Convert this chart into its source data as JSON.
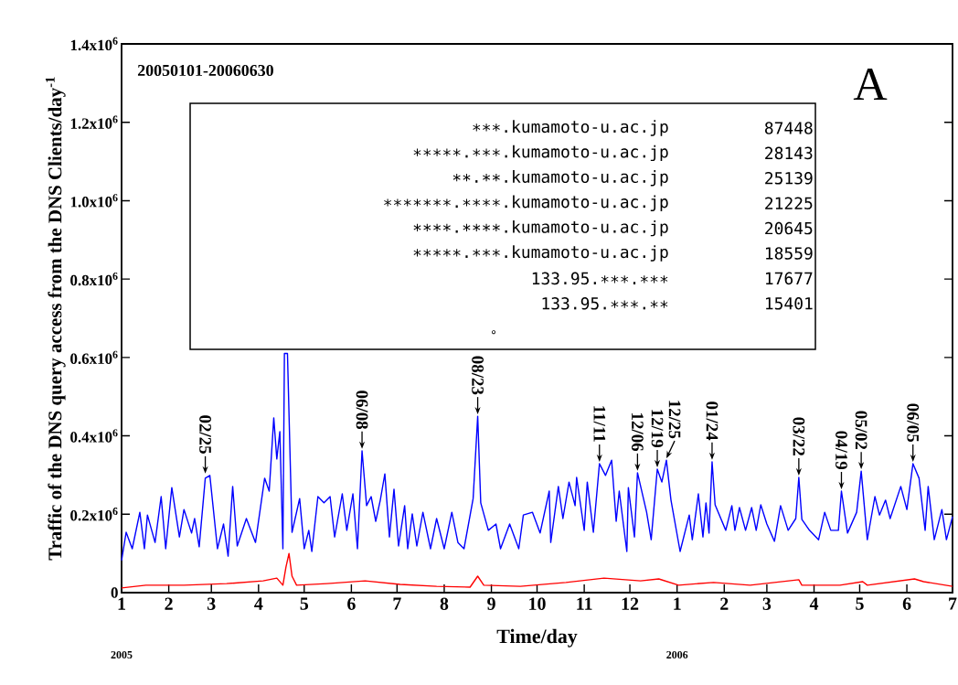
{
  "chart_data": {
    "type": "line",
    "xlabel": "Time/day",
    "ylabel": "Traffic of the DNS query access from the DNS Clients/day$^{-1}$",
    "xlim": [
      "2005-01-01",
      "2006-07-01"
    ],
    "ylim": [
      0,
      1400000
    ],
    "xticks": [
      {
        "value": "2005-01-01",
        "label": "1"
      },
      {
        "value": "2005-02-01",
        "label": "2"
      },
      {
        "value": "2005-03-01",
        "label": "3"
      },
      {
        "value": "2005-04-01",
        "label": "4"
      },
      {
        "value": "2005-05-01",
        "label": "5"
      },
      {
        "value": "2005-06-01",
        "label": "6"
      },
      {
        "value": "2005-07-01",
        "label": "7"
      },
      {
        "value": "2005-08-01",
        "label": "8"
      },
      {
        "value": "2005-09-01",
        "label": "9"
      },
      {
        "value": "2005-10-01",
        "label": "10"
      },
      {
        "value": "2005-11-01",
        "label": "11"
      },
      {
        "value": "2005-12-01",
        "label": "12"
      },
      {
        "value": "2006-01-01",
        "label": "1"
      },
      {
        "value": "2006-02-01",
        "label": "2"
      },
      {
        "value": "2006-03-01",
        "label": "3"
      },
      {
        "value": "2006-04-01",
        "label": "4"
      },
      {
        "value": "2006-05-01",
        "label": "5"
      },
      {
        "value": "2006-06-01",
        "label": "6"
      },
      {
        "value": "2006-07-01",
        "label": "7"
      }
    ],
    "yticks": [
      0,
      {
        "value": 200000,
        "label": "0.2x10$^{6}$"
      },
      {
        "value": 400000,
        "label": "0.4x10$^{6}$"
      },
      {
        "value": 600000,
        "label": "0.6x10$^{6}$"
      },
      {
        "value": 800000,
        "label": "0.8x10$^{6}$"
      },
      {
        "value": 1000000,
        "label": "1.0x10$^{6}$"
      },
      {
        "value": 1200000,
        "label": "1.2x10$^{6}$"
      },
      {
        "value": 1400000,
        "label": "1.4x10$^{6}$"
      }
    ],
    "grid": false,
    "marker": "none",
    "line_style": "solid",
    "series": [
      {
        "color": "#0000ff",
        "x": [
          "2005-01-01",
          "2005-01-04",
          "2005-01-08",
          "2005-01-13",
          "2005-01-16",
          "2005-01-18",
          "2005-01-23",
          "2005-01-27",
          "2005-01-30",
          "2005-02-03",
          "2005-02-08",
          "2005-02-11",
          "2005-02-16",
          "2005-02-18",
          "2005-02-21",
          "2005-02-25",
          "2005-02-28",
          "2005-03-05",
          "2005-03-09",
          "2005-03-12",
          "2005-03-15",
          "2005-03-18",
          "2005-03-24",
          "2005-03-30",
          "2005-04-05",
          "2005-04-08",
          "2005-04-11",
          "2005-04-13",
          "2005-04-15",
          "2005-04-17",
          "2005-04-18",
          "2005-04-20",
          "2005-04-22",
          "2005-04-23",
          "2005-04-28",
          "2005-05-01",
          "2005-05-04",
          "2005-05-06",
          "2005-05-10",
          "2005-05-14",
          "2005-05-18",
          "2005-05-21",
          "2005-05-26",
          "2005-05-29",
          "2005-06-02",
          "2005-06-05",
          "2005-06-08",
          "2005-06-11",
          "2005-06-14",
          "2005-06-17",
          "2005-06-20",
          "2005-06-23",
          "2005-06-26",
          "2005-06-29",
          "2005-07-02",
          "2005-07-06",
          "2005-07-08",
          "2005-07-11",
          "2005-07-14",
          "2005-07-18",
          "2005-07-23",
          "2005-07-27",
          "2005-08-01",
          "2005-08-06",
          "2005-08-10",
          "2005-08-14",
          "2005-08-20",
          "2005-08-23",
          "2005-08-25",
          "2005-08-30",
          "2005-09-04",
          "2005-09-07",
          "2005-09-13",
          "2005-09-19",
          "2005-09-22",
          "2005-09-28",
          "2005-10-03",
          "2005-10-09",
          "2005-10-10",
          "2005-10-15",
          "2005-10-18",
          "2005-10-22",
          "2005-10-26",
          "2005-10-27",
          "2005-11-01",
          "2005-11-03",
          "2005-11-07",
          "2005-11-11",
          "2005-11-15",
          "2005-11-19",
          "2005-11-22",
          "2005-11-24",
          "2005-11-29",
          "2005-11-30",
          "2005-12-04",
          "2005-12-06",
          "2005-12-12",
          "2005-12-15",
          "2005-12-19",
          "2005-12-22",
          "2005-12-25",
          "2005-12-28",
          "2006-01-03",
          "2006-01-09",
          "2006-01-11",
          "2006-01-15",
          "2006-01-18",
          "2006-01-20",
          "2006-01-22",
          "2006-01-24",
          "2006-01-26",
          "2006-02-02",
          "2006-02-06",
          "2006-02-08",
          "2006-02-11",
          "2006-02-15",
          "2006-02-19",
          "2006-02-22",
          "2006-02-25",
          "2006-03-01",
          "2006-03-06",
          "2006-03-10",
          "2006-03-15",
          "2006-03-20",
          "2006-03-22",
          "2006-03-24",
          "2006-03-29",
          "2006-04-04",
          "2006-04-08",
          "2006-04-12",
          "2006-04-17",
          "2006-04-19",
          "2006-04-23",
          "2006-04-29",
          "2006-05-02",
          "2006-05-06",
          "2006-05-11",
          "2006-05-14",
          "2006-05-18",
          "2006-05-21",
          "2006-05-28",
          "2006-06-01",
          "2006-06-05",
          "2006-06-09",
          "2006-06-13",
          "2006-06-15",
          "2006-06-19",
          "2006-06-24",
          "2006-06-27",
          "2006-07-01"
        ],
        "values": [
          82000,
          154000,
          112000,
          205000,
          112000,
          198000,
          128000,
          245000,
          112000,
          268000,
          142000,
          212000,
          152000,
          189000,
          117000,
          292000,
          299000,
          112000,
          175000,
          93000,
          271000,
          119000,
          189000,
          128000,
          292000,
          259000,
          446000,
          341000,
          411000,
          112000,
          610000,
          610000,
          306000,
          154000,
          240000,
          112000,
          159000,
          105000,
          245000,
          229000,
          245000,
          142000,
          252000,
          159000,
          252000,
          112000,
          362000,
          222000,
          245000,
          182000,
          236000,
          303000,
          142000,
          264000,
          119000,
          222000,
          112000,
          201000,
          119000,
          205000,
          112000,
          189000,
          112000,
          205000,
          128000,
          112000,
          240000,
          450000,
          229000,
          159000,
          175000,
          112000,
          175000,
          112000,
          198000,
          205000,
          152000,
          259000,
          128000,
          271000,
          189000,
          282000,
          222000,
          294000,
          159000,
          282000,
          154000,
          329000,
          299000,
          338000,
          182000,
          259000,
          105000,
          268000,
          142000,
          306000,
          205000,
          135000,
          315000,
          282000,
          338000,
          236000,
          105000,
          198000,
          135000,
          252000,
          142000,
          229000,
          152000,
          334000,
          224000,
          159000,
          222000,
          159000,
          217000,
          159000,
          217000,
          159000,
          224000,
          175000,
          131000,
          222000,
          159000,
          189000,
          294000,
          187000,
          159000,
          135000,
          205000,
          159000,
          159000,
          259000,
          152000,
          205000,
          310000,
          135000,
          245000,
          198000,
          236000,
          189000,
          271000,
          212000,
          329000,
          292000,
          159000,
          271000,
          135000,
          212000,
          135000,
          194000
        ]
      },
      {
        "color": "#ff0000",
        "x": [
          "2005-01-01",
          "2005-01-17",
          "2005-02-11",
          "2005-03-11",
          "2005-04-04",
          "2005-04-13",
          "2005-04-17",
          "2005-04-19",
          "2005-04-21",
          "2005-04-23",
          "2005-04-26",
          "2005-05-16",
          "2005-06-10",
          "2005-07-03",
          "2005-07-27",
          "2005-08-18",
          "2005-08-23",
          "2005-08-27",
          "2005-09-20",
          "2005-10-20",
          "2005-11-14",
          "2005-12-08",
          "2005-12-20",
          "2006-01-02",
          "2006-01-25",
          "2006-02-18",
          "2006-03-22",
          "2006-03-24",
          "2006-04-18",
          "2006-05-03",
          "2006-05-06",
          "2006-06-06",
          "2006-06-12",
          "2006-07-01"
        ],
        "values": [
          12000,
          19000,
          19000,
          23000,
          30000,
          37000,
          19000,
          65000,
          100000,
          42000,
          19000,
          23000,
          30000,
          21000,
          16000,
          14000,
          42000,
          19000,
          16000,
          26000,
          37000,
          30000,
          35000,
          19000,
          26000,
          19000,
          33000,
          19000,
          19000,
          28000,
          19000,
          35000,
          28000,
          16000
        ]
      }
    ],
    "annotations": [
      "20050101-20060630",
      "A",
      "∗∗∗.kumamoto-u.ac.jp",
      "87448",
      "∗∗∗∗∗.∗∗∗.kumamoto-u.ac.jp",
      "28143",
      "∗∗.∗∗.kumamoto-u.ac.jp",
      "25139",
      "∗∗∗∗∗∗∗.∗∗∗∗.kumamoto-u.ac.jp",
      "21225",
      "∗∗∗∗.∗∗∗∗.kumamoto-u.ac.jp",
      "20645",
      "∗∗∗∗∗.∗∗∗.kumamoto-u.ac.jp",
      "18559",
      "133.95.∗∗∗.∗∗∗",
      "17677",
      "133.95.∗∗∗.∗∗",
      "15401",
      "°",
      "2005",
      "2006",
      {
        "text": "02/25",
        "x": "2005-02-25",
        "y": 299000
      },
      {
        "text": "06/08",
        "x": "2005-06-08",
        "y": 362000
      },
      {
        "text": "08/23",
        "x": "2005-08-23",
        "y": 450000
      },
      {
        "text": "11/11",
        "x": "2005-11-11",
        "y": 329000
      },
      {
        "text": "12/06",
        "x": "2005-12-06",
        "y": 306000
      },
      {
        "text": "12/19",
        "x": "2005-12-19",
        "y": 315000
      },
      {
        "text": "12/25",
        "x": "2005-12-25",
        "y": 338000
      },
      {
        "text": "01/24",
        "x": "2006-01-24",
        "y": 334000
      },
      {
        "text": "03/22",
        "x": "2006-03-22",
        "y": 294000
      },
      {
        "text": "04/19",
        "x": "2006-04-19",
        "y": 259000
      },
      {
        "text": "05/02",
        "x": "2006-05-02",
        "y": 310000
      },
      {
        "text": "06/05",
        "x": "2006-06-05",
        "y": 329000
      }
    ]
  }
}
